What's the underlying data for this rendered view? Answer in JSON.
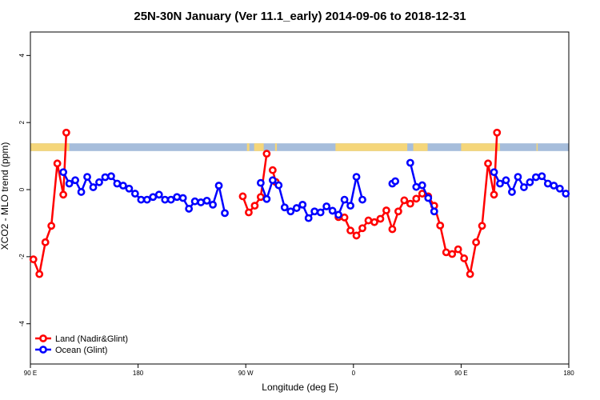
{
  "chart_data": {
    "type": "line",
    "title": "25N-30N January (Ver 11.1_early)   2014-09-06 to 2018-12-31",
    "xlabel": "Longitude (deg E)",
    "ylabel": "XCO2 - MLO trend (ppm)",
    "xlim": [
      90,
      540
    ],
    "ylim": [
      -5.2,
      4.7
    ],
    "x_ticks": [
      {
        "value": 90,
        "label": "90 E"
      },
      {
        "value": 180,
        "label": "180"
      },
      {
        "value": 270,
        "label": "90 W"
      },
      {
        "value": 360,
        "label": "0"
      },
      {
        "value": 450,
        "label": "90 E"
      },
      {
        "value": 540,
        "label": "180"
      }
    ],
    "y_ticks": [
      {
        "value": -4,
        "label": "-4"
      },
      {
        "value": -2,
        "label": "-2"
      },
      {
        "value": 0,
        "label": "0"
      },
      {
        "value": 2,
        "label": "2"
      },
      {
        "value": 4,
        "label": "4"
      }
    ],
    "band": {
      "y_top": 1.38,
      "y_bottom": 1.15,
      "ocean_color": "#a6bddb",
      "land_color": "#f5d67a",
      "land_ranges": [
        [
          90,
          122.5
        ],
        [
          271,
          273
        ],
        [
          277,
          285
        ],
        [
          294.5,
          296
        ],
        [
          345,
          405
        ],
        [
          410,
          422
        ],
        [
          450,
          482.5
        ],
        [
          513,
          514
        ]
      ]
    },
    "series": [
      {
        "name": "Land (Nadir&Glint)",
        "color": "#ff0000",
        "segments": [
          [
            [
              92.5,
              -2.08
            ],
            [
              97.5,
              -2.52
            ],
            [
              102.5,
              -1.57
            ],
            [
              107.5,
              -1.08
            ],
            [
              112.5,
              0.78
            ],
            [
              117.5,
              -0.15
            ],
            [
              120.0,
              1.7
            ]
          ],
          [
            [
              267.5,
              -0.2
            ],
            [
              272.5,
              -0.68
            ],
            [
              277.5,
              -0.48
            ],
            [
              282.5,
              -0.22
            ],
            [
              287.5,
              1.07
            ]
          ],
          [
            [
              292.5,
              0.58
            ],
            [
              295.0,
              0.23
            ]
          ],
          [
            [
              347.5,
              -0.82
            ],
            [
              352.5,
              -0.83
            ],
            [
              357.5,
              -1.22
            ],
            [
              362.5,
              -1.37
            ],
            [
              367.5,
              -1.15
            ],
            [
              372.5,
              -0.92
            ],
            [
              377.5,
              -0.97
            ],
            [
              382.5,
              -0.87
            ],
            [
              387.5,
              -0.62
            ],
            [
              392.5,
              -1.18
            ],
            [
              397.5,
              -0.65
            ],
            [
              402.5,
              -0.32
            ],
            [
              407.5,
              -0.42
            ],
            [
              412.5,
              -0.27
            ],
            [
              417.5,
              -0.12
            ],
            [
              422.5,
              -0.2
            ],
            [
              427.5,
              -0.48
            ],
            [
              432.5,
              -1.07
            ],
            [
              437.5,
              -1.87
            ],
            [
              442.5,
              -1.92
            ],
            [
              447.5,
              -1.78
            ],
            [
              452.5,
              -2.05
            ],
            [
              457.5,
              -2.52
            ],
            [
              462.5,
              -1.57
            ],
            [
              467.5,
              -1.08
            ],
            [
              472.5,
              0.78
            ],
            [
              477.5,
              -0.15
            ],
            [
              480.0,
              1.7
            ]
          ]
        ]
      },
      {
        "name": "Ocean (Glint)",
        "color": "#0000ff",
        "segments": [
          [
            [
              117.5,
              0.52
            ],
            [
              122.5,
              0.18
            ],
            [
              127.5,
              0.28
            ],
            [
              132.5,
              -0.07
            ],
            [
              137.5,
              0.38
            ],
            [
              142.5,
              0.07
            ],
            [
              147.5,
              0.22
            ],
            [
              152.5,
              0.37
            ],
            [
              157.5,
              0.4
            ],
            [
              162.5,
              0.18
            ],
            [
              167.5,
              0.12
            ],
            [
              172.5,
              0.03
            ],
            [
              177.5,
              -0.12
            ],
            [
              182.5,
              -0.3
            ],
            [
              187.5,
              -0.3
            ],
            [
              192.5,
              -0.22
            ],
            [
              197.5,
              -0.15
            ],
            [
              202.5,
              -0.3
            ],
            [
              207.5,
              -0.3
            ],
            [
              212.5,
              -0.22
            ],
            [
              217.5,
              -0.25
            ],
            [
              222.5,
              -0.57
            ],
            [
              227.5,
              -0.35
            ],
            [
              232.5,
              -0.38
            ],
            [
              237.5,
              -0.33
            ],
            [
              242.5,
              -0.45
            ],
            [
              247.5,
              0.12
            ],
            [
              252.5,
              -0.7
            ]
          ],
          [
            [
              282.5,
              0.2
            ],
            [
              287.5,
              -0.28
            ],
            [
              292.5,
              0.28
            ],
            [
              297.5,
              0.13
            ],
            [
              302.5,
              -0.53
            ],
            [
              307.5,
              -0.65
            ],
            [
              312.5,
              -0.55
            ],
            [
              317.5,
              -0.45
            ],
            [
              322.5,
              -0.85
            ],
            [
              327.5,
              -0.65
            ],
            [
              332.5,
              -0.68
            ],
            [
              337.5,
              -0.5
            ],
            [
              342.5,
              -0.63
            ],
            [
              347.5,
              -0.75
            ],
            [
              352.5,
              -0.3
            ],
            [
              357.5,
              -0.48
            ],
            [
              362.5,
              0.38
            ],
            [
              367.5,
              -0.3
            ]
          ],
          [
            [
              392.5,
              0.18
            ],
            [
              395.0,
              0.25
            ]
          ],
          [
            [
              407.5,
              0.8
            ],
            [
              412.5,
              0.08
            ],
            [
              417.5,
              0.13
            ],
            [
              422.5,
              -0.25
            ],
            [
              427.5,
              -0.65
            ]
          ],
          [
            [
              477.5,
              0.52
            ],
            [
              482.5,
              0.18
            ],
            [
              487.5,
              0.28
            ],
            [
              492.5,
              -0.07
            ],
            [
              497.5,
              0.38
            ],
            [
              502.5,
              0.07
            ],
            [
              507.5,
              0.22
            ],
            [
              512.5,
              0.37
            ],
            [
              517.5,
              0.4
            ],
            [
              522.5,
              0.18
            ],
            [
              527.5,
              0.12
            ],
            [
              532.5,
              0.03
            ],
            [
              537.5,
              -0.12
            ]
          ]
        ]
      }
    ],
    "legend": {
      "position": "bottom-left"
    }
  }
}
